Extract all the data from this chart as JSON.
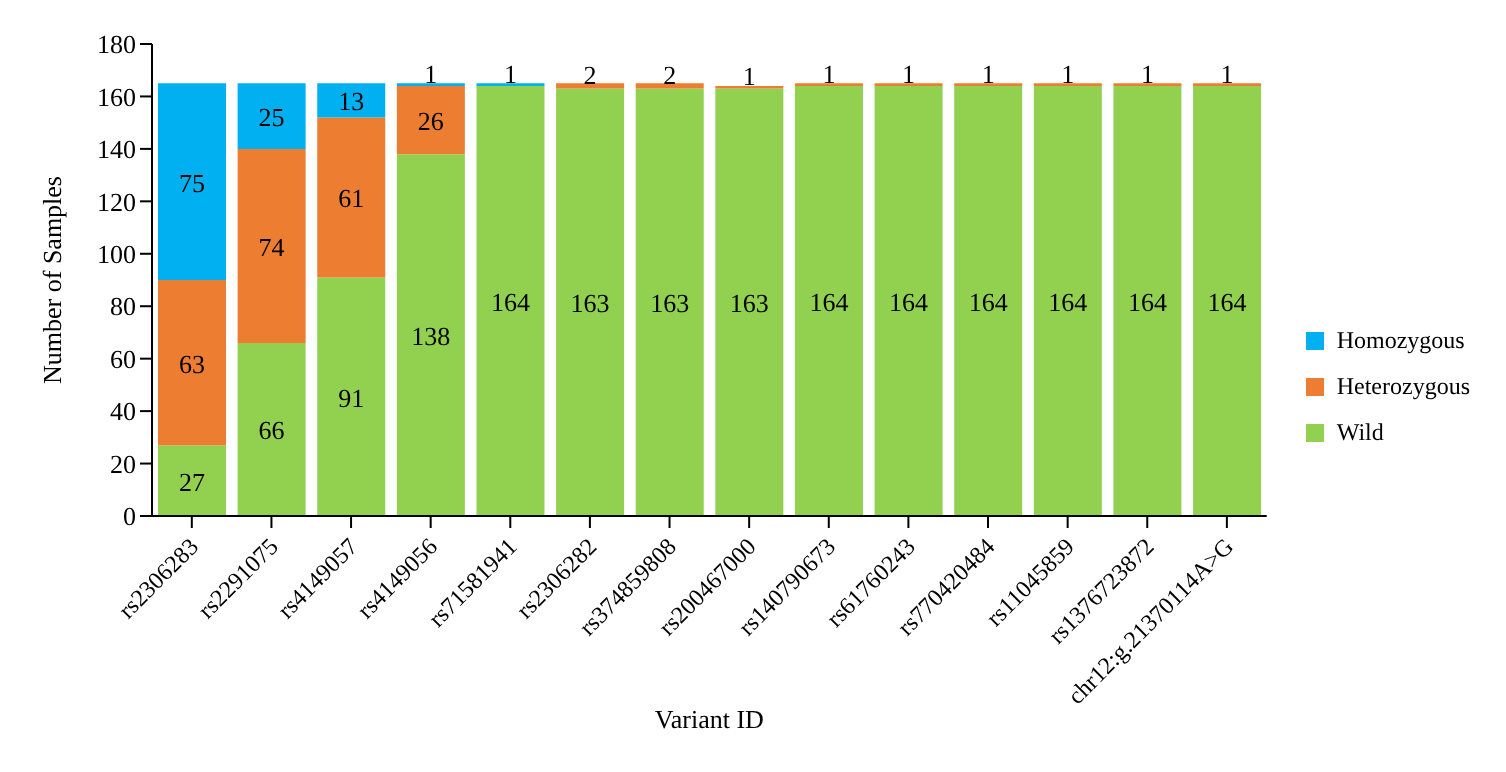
{
  "chart_data": {
    "type": "bar",
    "stacked": true,
    "xlabel": "Variant ID",
    "ylabel": "Number of Samples",
    "categories": [
      "rs2306283",
      "rs2291075",
      "rs4149057",
      "rs4149056",
      "rs71581941",
      "rs2306282",
      "rs374859808",
      "rs200467000",
      "rs140790673",
      "rs61760243",
      "rs770420484",
      "rs11045859",
      "rs1376723872",
      "chr12:g.21370114A>G"
    ],
    "series": [
      {
        "name": "Wild",
        "color": "#92d050",
        "values": [
          27,
          66,
          91,
          138,
          164,
          163,
          163,
          163,
          164,
          164,
          164,
          164,
          164,
          164
        ],
        "value_labels": [
          "27",
          "66",
          "91",
          "138",
          "164",
          "163",
          "163",
          "163",
          "164",
          "164",
          "164",
          "164",
          "164",
          "164"
        ]
      },
      {
        "name": "Heterozygous",
        "color": "#ed7d31",
        "values": [
          63,
          74,
          61,
          26,
          0,
          2,
          2,
          1,
          1,
          1,
          1,
          1,
          1,
          1
        ],
        "value_labels": [
          "63",
          "74",
          "61",
          "26",
          null,
          "2",
          "2",
          "1",
          "1",
          "1",
          "1",
          "1",
          "1",
          "1"
        ]
      },
      {
        "name": "Homozygous",
        "color": "#00b0f0",
        "values": [
          75,
          25,
          13,
          1,
          1,
          0,
          0,
          0,
          0,
          0,
          0,
          0,
          0,
          0
        ],
        "value_labels": [
          "75",
          "25",
          "13",
          "1",
          "1",
          null,
          null,
          null,
          null,
          null,
          null,
          null,
          null,
          null
        ]
      }
    ],
    "ylim": [
      0,
      180
    ],
    "yticks": [
      0,
      20,
      40,
      60,
      80,
      100,
      120,
      140,
      160,
      180
    ],
    "grid": false,
    "legend": "right"
  }
}
